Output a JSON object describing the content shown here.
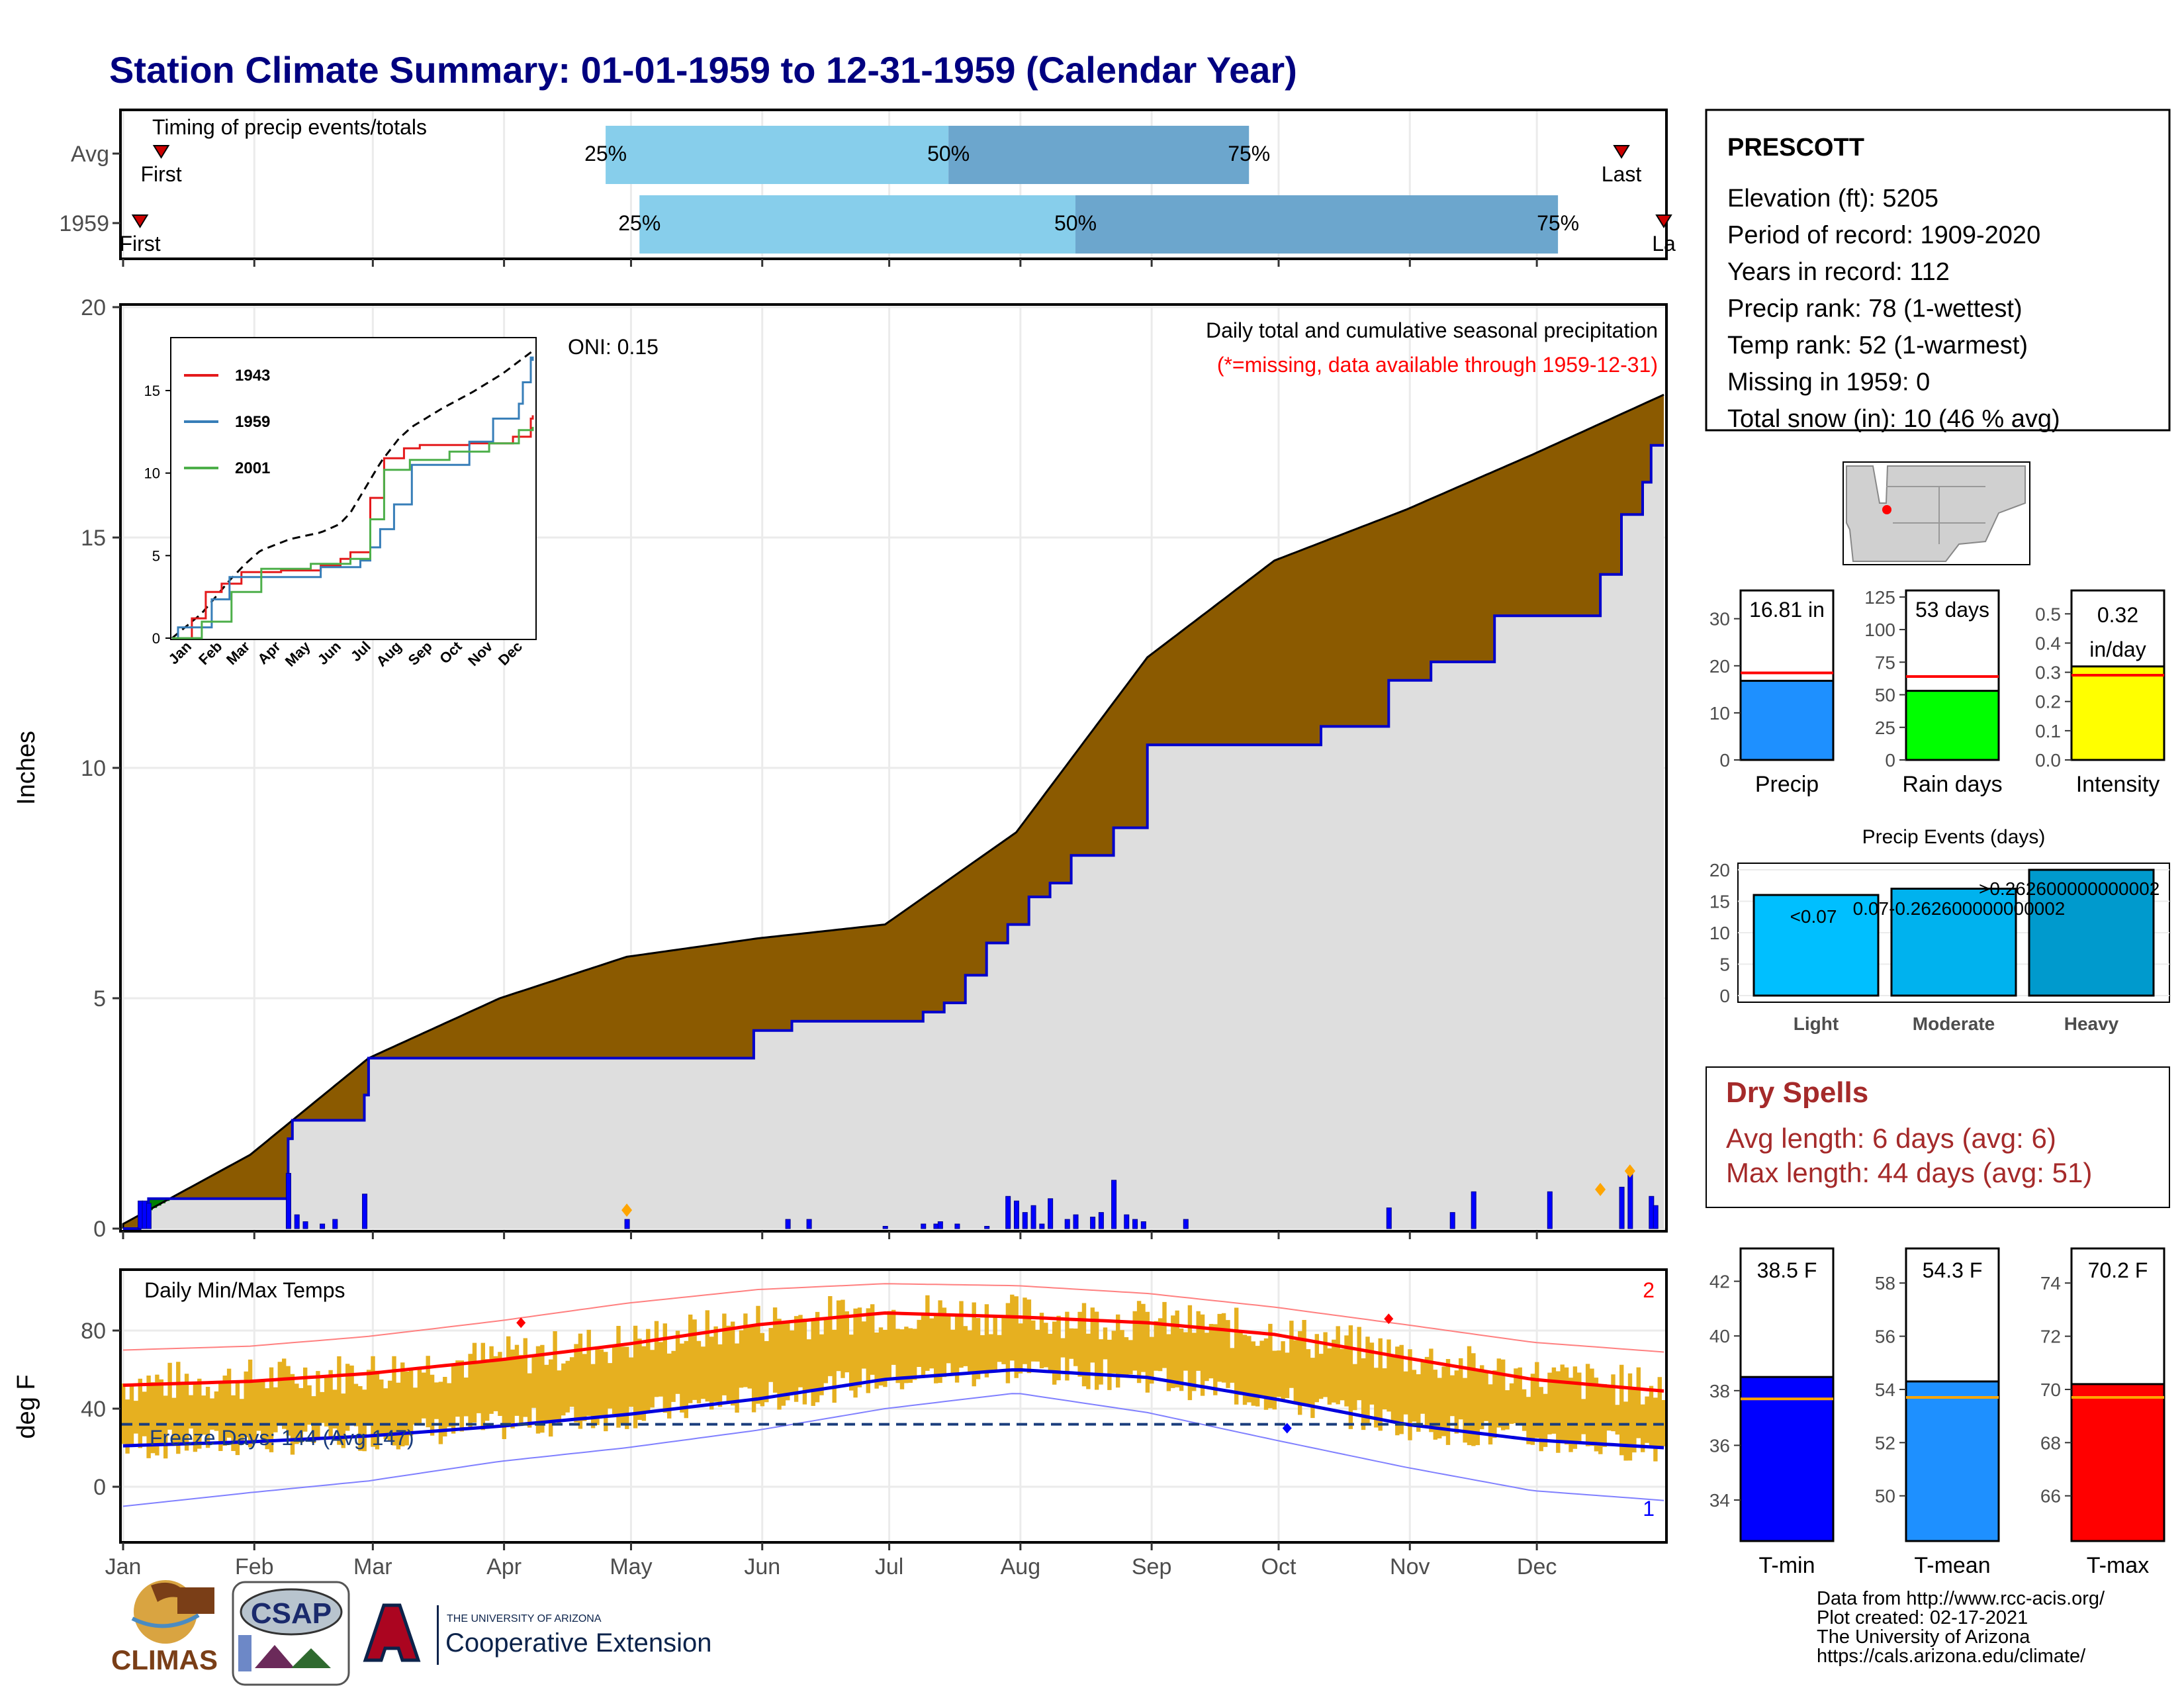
{
  "title": "Station Climate Summary: 01-01-1959 to 12-31-1959 (Calendar Year)",
  "timing": {
    "label": "Timing of precip events/totals",
    "rows": [
      {
        "name": "Avg",
        "first_label": "First",
        "last_label": "Last",
        "first_day": 10,
        "last_day": 355,
        "p25": 115,
        "p50": 196,
        "p75": 267,
        "p25_label": "25%",
        "p50_label": "50%",
        "p75_label": "75%"
      },
      {
        "name": "1959",
        "first_label": "First",
        "last_label": "La",
        "first_day": 5,
        "last_day": 365,
        "p25": 123,
        "p50": 226,
        "p75": 340,
        "p25_label": "25%",
        "p50_label": "50%",
        "p75_label": "75%"
      }
    ]
  },
  "months": [
    "Jan",
    "Feb",
    "Mar",
    "Apr",
    "May",
    "Jun",
    "Jul",
    "Aug",
    "Sep",
    "Oct",
    "Nov",
    "Dec"
  ],
  "precip": {
    "ylabel": "Inches",
    "yticks": [
      "0",
      "5",
      "10",
      "15",
      "20"
    ],
    "caption1": "Daily total and cumulative seasonal precipitation",
    "caption2": "(*=missing, data available through 1959-12-31)",
    "oni": "ONI: 0.15",
    "inset": {
      "legend": [
        "1943",
        "1959",
        "2001"
      ],
      "yticks": [
        "0",
        "5",
        "10",
        "15"
      ],
      "xticks": [
        "Jan",
        "Feb",
        "Mar",
        "Apr",
        "May",
        "Jun",
        "Jul",
        "Aug",
        "Sep",
        "Oct",
        "Nov",
        "Dec"
      ]
    }
  },
  "temps": {
    "ylabel": "deg F",
    "title": "Daily Min/Max Temps",
    "yticks": [
      "0",
      "40",
      "80"
    ],
    "freeze": "Freeze Days: 144 (Avg 147)",
    "count_hi": "2",
    "count_lo": "1"
  },
  "station": {
    "name": "PRESCOTT",
    "lines": [
      "Elevation (ft): 5205",
      "Period of record: 1909-2020",
      "Years in record: 112",
      "Precip rank: 78 (1-wettest)",
      "Temp rank: 52 (1-warmest)",
      "Missing in 1959: 0",
      "Total snow (in): 10 (46 % avg)"
    ]
  },
  "summary_bars": [
    {
      "label": "Precip",
      "value_label": "16.81 in",
      "value": 16.81,
      "avg": 18.5,
      "ymax": 36,
      "ticks": [
        "0",
        "10",
        "20",
        "30"
      ],
      "color": "#1e90ff"
    },
    {
      "label": "Rain days",
      "value_label": "53 days",
      "value": 53,
      "avg": 64,
      "ymax": 130,
      "ticks": [
        "0",
        "25",
        "50",
        "75",
        "100",
        "125"
      ],
      "color": "#00ff00"
    },
    {
      "label": "Intensity",
      "value_label": "0.32 in/day",
      "value": 0.32,
      "avg": 0.29,
      "ymax": 0.58,
      "ticks": [
        "0.0",
        "0.1",
        "0.2",
        "0.3",
        "0.4",
        "0.5"
      ],
      "color": "#ffff00"
    }
  ],
  "precip_events": {
    "title": "Precip Events (days)",
    "yticks": [
      "0",
      "5",
      "10",
      "15",
      "20"
    ],
    "bars": [
      {
        "label": "Light",
        "value": 16,
        "text": "<0.07"
      },
      {
        "label": "Moderate",
        "value": 17,
        "text": "0.07-0.262600000000002"
      },
      {
        "label": "Heavy",
        "value": 20,
        "text": ">0.262600000000002"
      }
    ]
  },
  "dry_spells": {
    "title": "Dry Spells",
    "avg": "Avg length: 6 days (avg: 6)",
    "max": "Max length: 44 days (avg: 51)"
  },
  "temp_bars": [
    {
      "label": "T-min",
      "value_label": "38.5 F",
      "value": 38.5,
      "avg": 37.7,
      "ymin": 32.5,
      "ymax": 43.2,
      "ticks": [
        "34",
        "36",
        "38",
        "40",
        "42"
      ],
      "color": "#0000ff"
    },
    {
      "label": "T-mean",
      "value_label": "54.3 F",
      "value": 54.3,
      "avg": 53.7,
      "ymin": 48.3,
      "ymax": 59.3,
      "ticks": [
        "50",
        "52",
        "54",
        "56",
        "58"
      ],
      "color": "#1e90ff"
    },
    {
      "label": "T-max",
      "value_label": "70.2 F",
      "value": 70.2,
      "avg": 69.7,
      "ymin": 64.3,
      "ymax": 75.3,
      "ticks": [
        "66",
        "68",
        "70",
        "72",
        "74"
      ],
      "color": "#ff0000"
    }
  ],
  "footer": {
    "lines": [
      "Data from http://www.rcc-acis.org/",
      "Plot created: 02-17-2021",
      "The University of Arizona",
      "https://cals.arizona.edu/climate/"
    ],
    "logo_climas": "CLIMAS",
    "logo_csap": "CSAP",
    "logo_ua_small": "THE UNIVERSITY OF ARIZONA",
    "logo_ua_big": "Cooperative Extension"
  },
  "chart_data": [
    {
      "type": "area",
      "title": "Daily total and cumulative seasonal precipitation",
      "ylabel": "Inches",
      "ylim": [
        0,
        20
      ],
      "x": "day of year 1959",
      "avg_cumulative": {
        "day": [
          1,
          31,
          59,
          90,
          120,
          151,
          181,
          212,
          243,
          273,
          304,
          334,
          365
        ],
        "inches": [
          0.1,
          1.6,
          3.7,
          5.0,
          5.9,
          6.3,
          6.6,
          8.6,
          12.4,
          14.5,
          15.6,
          16.8,
          18.1
        ]
      },
      "cumulative_1959": {
        "day": [
          1,
          5,
          7,
          20,
          40,
          41,
          58,
          59,
          90,
          121,
          150,
          159,
          182,
          190,
          195,
          200,
          205,
          210,
          215,
          220,
          225,
          235,
          243,
          270,
          284,
          300,
          310,
          325,
          350,
          355,
          360,
          362,
          365
        ],
        "inches": [
          0,
          0.1,
          0.65,
          0.65,
          1.95,
          2.35,
          2.9,
          3.7,
          3.7,
          3.7,
          4.3,
          4.5,
          4.5,
          4.7,
          4.9,
          5.5,
          6.2,
          6.6,
          7.2,
          7.5,
          8.1,
          8.7,
          10.5,
          10.5,
          10.9,
          11.9,
          12.3,
          13.3,
          14.2,
          15.5,
          16.2,
          17.0,
          17.0
        ]
      },
      "daily_1959": {
        "day": [
          5,
          6,
          7,
          40,
          42,
          44,
          48,
          51,
          58,
          120,
          158,
          163,
          181,
          190,
          193,
          194,
          198,
          205,
          210,
          212,
          214,
          216,
          218,
          220,
          224,
          226,
          230,
          232,
          235,
          238,
          240,
          242,
          252,
          300,
          315,
          320,
          338,
          355,
          357,
          362,
          363
        ],
        "inches": [
          0.6,
          0.6,
          0.55,
          1.2,
          0.3,
          0.15,
          0.1,
          0.2,
          0.75,
          0.2,
          0.2,
          0.2,
          0.05,
          0.1,
          0.1,
          0.15,
          0.1,
          0.05,
          0.7,
          0.6,
          0.35,
          0.5,
          0.1,
          0.65,
          0.2,
          0.3,
          0.25,
          0.35,
          1.05,
          0.3,
          0.2,
          0.15,
          0.2,
          0.45,
          0.35,
          0.8,
          0.8,
          0.9,
          1.3,
          0.7,
          0.5
        ]
      }
    },
    {
      "type": "line",
      "title": "Daily Min/Max Temps",
      "ylabel": "deg F",
      "ylim": [
        -25,
        108
      ],
      "x": "day of year 1959",
      "avg_max": {
        "day": [
          1,
          31,
          59,
          90,
          120,
          151,
          181,
          212,
          243,
          273,
          304,
          334,
          365
        ],
        "degF": [
          52,
          54,
          58,
          65,
          73,
          83,
          89,
          87,
          84,
          78,
          66,
          55,
          49
        ]
      },
      "avg_min": {
        "day": [
          1,
          31,
          59,
          90,
          120,
          151,
          181,
          212,
          243,
          273,
          304,
          334,
          365
        ],
        "degF": [
          21,
          23,
          26,
          31,
          37,
          45,
          55,
          60,
          56,
          45,
          32,
          24,
          20
        ]
      },
      "record_high": {
        "day": [
          1,
          31,
          59,
          90,
          120,
          151,
          181,
          212,
          243,
          273,
          304,
          334,
          365
        ],
        "degF": [
          70,
          72,
          77,
          85,
          94,
          101,
          104,
          103,
          99,
          92,
          83,
          74,
          69
        ]
      },
      "record_low": {
        "day": [
          1,
          31,
          59,
          90,
          120,
          151,
          181,
          212,
          243,
          273,
          304,
          334,
          365
        ],
        "degF": [
          -10,
          -3,
          3,
          13,
          20,
          29,
          40,
          48,
          38,
          24,
          10,
          -2,
          -7
        ]
      },
      "freeze_line": 32
    }
  ]
}
